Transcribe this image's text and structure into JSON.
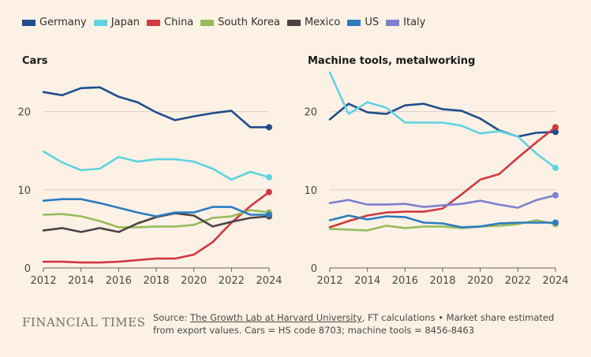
{
  "legend": [
    {
      "name": "Germany",
      "color": "#1F4E8C"
    },
    {
      "name": "Japan",
      "color": "#5FD3E0"
    },
    {
      "name": "China",
      "color": "#D0393E"
    },
    {
      "name": "South Korea",
      "color": "#96BC5A"
    },
    {
      "name": "Mexico",
      "color": "#4A4443"
    },
    {
      "name": "US",
      "color": "#2B7CC0"
    },
    {
      "name": "Italy",
      "color": "#7F7FCE"
    }
  ],
  "footer": {
    "brand": "FINANCIAL TIMES",
    "source_prefix": "Source: ",
    "source_link": "The Growth Lab at Harvard University",
    "source_rest": ", FT calculations • Market share estimated from export values. Cars = HS code 8703; machine tools = 8456-8463"
  },
  "chart_data": [
    {
      "type": "line",
      "title": "Cars",
      "x": [
        2012,
        2013,
        2014,
        2015,
        2016,
        2017,
        2018,
        2019,
        2020,
        2021,
        2022,
        2023,
        2024
      ],
      "xticks": [
        "2012",
        "2014",
        "2016",
        "2018",
        "2020",
        "2022",
        "2024"
      ],
      "yticks": [
        "0",
        "10",
        "20"
      ],
      "ylim": [
        0,
        25
      ],
      "xlabel": "",
      "ylabel": "",
      "series": [
        {
          "name": "Germany",
          "color": "#1F4E8C",
          "values": [
            22.5,
            22.1,
            23.0,
            23.1,
            21.9,
            21.2,
            19.9,
            18.9,
            19.4,
            19.8,
            20.1,
            18.0,
            18.0
          ]
        },
        {
          "name": "Japan",
          "color": "#5FD3E0",
          "values": [
            14.9,
            13.5,
            12.5,
            12.7,
            14.2,
            13.6,
            13.9,
            13.9,
            13.6,
            12.7,
            11.3,
            12.3,
            11.6
          ]
        },
        {
          "name": "China",
          "color": "#D0393E",
          "values": [
            0.8,
            0.8,
            0.7,
            0.7,
            0.8,
            1.0,
            1.2,
            1.2,
            1.7,
            3.3,
            5.8,
            7.9,
            9.7
          ]
        },
        {
          "name": "South Korea",
          "color": "#96BC5A",
          "values": [
            6.8,
            6.9,
            6.6,
            6.0,
            5.2,
            5.2,
            5.3,
            5.3,
            5.5,
            6.4,
            6.6,
            7.4,
            7.1
          ]
        },
        {
          "name": "Mexico",
          "color": "#4A4443",
          "values": [
            4.8,
            5.1,
            4.6,
            5.1,
            4.6,
            5.7,
            6.5,
            7.0,
            6.7,
            5.3,
            5.9,
            6.4,
            6.6
          ]
        },
        {
          "name": "US",
          "color": "#2B7CC0",
          "values": [
            8.6,
            8.8,
            8.8,
            8.3,
            7.7,
            7.1,
            6.6,
            7.1,
            7.1,
            7.8,
            7.8,
            6.8,
            6.8
          ]
        }
      ]
    },
    {
      "type": "line",
      "title": "Machine tools, metalworking",
      "x": [
        2012,
        2013,
        2014,
        2015,
        2016,
        2017,
        2018,
        2019,
        2020,
        2021,
        2022,
        2023,
        2024
      ],
      "xticks": [
        "2012",
        "2014",
        "2016",
        "2018",
        "2020",
        "2022",
        "2024"
      ],
      "yticks": [
        "0",
        "10",
        "20"
      ],
      "ylim": [
        0,
        25
      ],
      "xlabel": "",
      "ylabel": "",
      "series": [
        {
          "name": "Germany",
          "color": "#1F4E8C",
          "values": [
            19.0,
            21.0,
            19.9,
            19.7,
            20.8,
            21.0,
            20.3,
            20.1,
            19.1,
            17.6,
            16.8,
            17.3,
            17.4
          ]
        },
        {
          "name": "Japan",
          "color": "#5FD3E0",
          "values": [
            25.0,
            19.7,
            21.2,
            20.5,
            18.6,
            18.6,
            18.6,
            18.2,
            17.2,
            17.5,
            16.8,
            14.6,
            12.8
          ]
        },
        {
          "name": "China",
          "color": "#D0393E",
          "values": [
            5.2,
            6.0,
            6.7,
            7.1,
            7.2,
            7.2,
            7.6,
            9.4,
            11.3,
            12.0,
            14.1,
            16.1,
            18.0
          ]
        },
        {
          "name": "South Korea",
          "color": "#96BC5A",
          "values": [
            5.0,
            4.9,
            4.8,
            5.4,
            5.1,
            5.3,
            5.3,
            5.1,
            5.3,
            5.4,
            5.6,
            6.1,
            5.6
          ]
        },
        {
          "name": "US",
          "color": "#2B7CC0",
          "values": [
            6.1,
            6.7,
            6.2,
            6.6,
            6.5,
            5.8,
            5.7,
            5.2,
            5.3,
            5.7,
            5.8,
            5.8,
            5.8
          ]
        },
        {
          "name": "Italy",
          "color": "#7F7FCE",
          "values": [
            8.3,
            8.7,
            8.1,
            8.1,
            8.2,
            7.8,
            8.0,
            8.2,
            8.6,
            8.1,
            7.7,
            8.7,
            9.3
          ]
        }
      ]
    }
  ]
}
